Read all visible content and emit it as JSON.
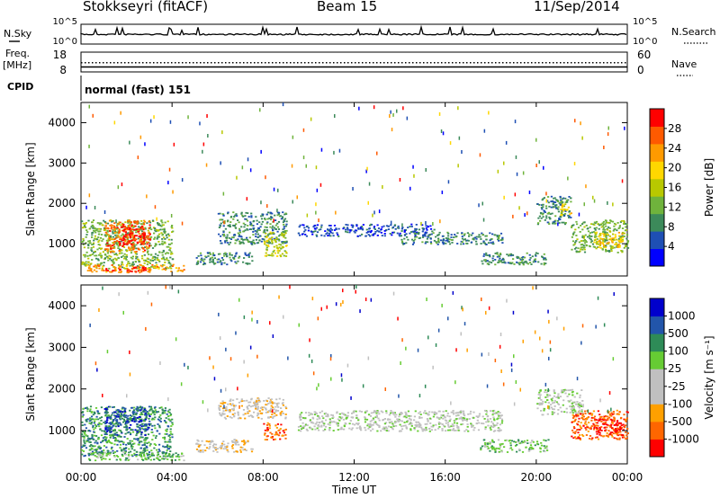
{
  "header": {
    "station": "Stokkseyri (fitACF)",
    "beam": "Beam 15",
    "date": "11/Sep/2014"
  },
  "left_labels": {
    "nsky": "N.Sky",
    "freq": "Freq.",
    "freq_unit": "[MHz]",
    "cpid": "CPID"
  },
  "right_labels": {
    "nsearch": "N.Search",
    "nave": "Nave"
  },
  "cpid_text": "normal (fast) 151",
  "colors": {
    "power": [
      "#0000ff",
      "#1e4fb4",
      "#3c8a5a",
      "#6fb33c",
      "#b8c800",
      "#ffd700",
      "#ff9a00",
      "#ff5a00",
      "#ff0000"
    ],
    "velocity": [
      "#ff0000",
      "#ff6600",
      "#ffa000",
      "#c0c0c0",
      "#c0c0c0",
      "#66cc33",
      "#2e8b57",
      "#2255aa",
      "#0000cc"
    ]
  },
  "chart_data": [
    {
      "type": "line",
      "name": "nsky-nsearch",
      "ylabel_left": "N.Sky",
      "ylabel_right": "N.Search",
      "left_ticks": [
        "10^5",
        "10^0"
      ],
      "right_ticks": [
        "10^5",
        "10^0"
      ],
      "yscale": "log"
    },
    {
      "type": "line",
      "name": "freq-nave",
      "left_ticks": [
        "18",
        "8"
      ],
      "right_ticks": [
        "60",
        "0"
      ],
      "ylim_left": [
        8,
        18
      ],
      "ylim_right": [
        0,
        60
      ],
      "series": [
        {
          "name": "Freq.",
          "style": "solid",
          "value": 10.5
        },
        {
          "name": "Nave",
          "style": "dotted",
          "value": 28
        }
      ]
    },
    {
      "type": "heatmap",
      "name": "power",
      "ylabel": "Slant Range [km]",
      "y_ticks": [
        "4000",
        "3000",
        "2000",
        "1000"
      ],
      "ylim": [
        200,
        4500
      ],
      "xlim": [
        0,
        24
      ],
      "colorbar": {
        "label": "Power [dB]",
        "ticks": [
          "28",
          "24",
          "20",
          "16",
          "12",
          "8",
          "4"
        ],
        "range": [
          0,
          32
        ]
      },
      "regions": [
        {
          "t": [
            0.0,
            4.0
          ],
          "r": [
            400,
            1600
          ],
          "level": 3
        },
        {
          "t": [
            1.0,
            3.0
          ],
          "r": [
            800,
            1600
          ],
          "level": 7
        },
        {
          "t": [
            1.8,
            2.8
          ],
          "r": [
            1000,
            1500
          ],
          "level": 8
        },
        {
          "t": [
            0.2,
            4.5
          ],
          "r": [
            300,
            500
          ],
          "level": 6
        },
        {
          "t": [
            1.0,
            3.0
          ],
          "r": [
            320,
            440
          ],
          "level": 8
        },
        {
          "t": [
            5.0,
            7.5
          ],
          "r": [
            500,
            800
          ],
          "level": 2
        },
        {
          "t": [
            6.0,
            9.0
          ],
          "r": [
            1000,
            1800
          ],
          "level": 2
        },
        {
          "t": [
            8.0,
            9.0
          ],
          "r": [
            700,
            1300
          ],
          "level": 4
        },
        {
          "t": [
            9.5,
            15.5
          ],
          "r": [
            1200,
            1500
          ],
          "level": 1
        },
        {
          "t": [
            14.0,
            18.5
          ],
          "r": [
            1000,
            1300
          ],
          "level": 2
        },
        {
          "t": [
            17.5,
            20.5
          ],
          "r": [
            500,
            800
          ],
          "level": 2
        },
        {
          "t": [
            20.0,
            21.5
          ],
          "r": [
            1500,
            2200
          ],
          "level": 2
        },
        {
          "t": [
            21.0,
            21.5
          ],
          "r": [
            1700,
            2000
          ],
          "level": 5
        },
        {
          "t": [
            21.5,
            24.0
          ],
          "r": [
            800,
            1600
          ],
          "level": 3
        },
        {
          "t": [
            22.5,
            23.8
          ],
          "r": [
            900,
            1300
          ],
          "level": 5
        }
      ]
    },
    {
      "type": "heatmap",
      "name": "velocity",
      "ylabel": "Slant Range [km]",
      "xlabel": "Time UT",
      "y_ticks": [
        "4000",
        "3000",
        "2000",
        "1000"
      ],
      "x_ticks": [
        "00:00",
        "04:00",
        "08:00",
        "12:00",
        "16:00",
        "20:00",
        "00:00"
      ],
      "ylim": [
        200,
        4500
      ],
      "xlim": [
        0,
        24
      ],
      "colorbar": {
        "label": "Velocity [m s⁻¹]",
        "ticks": [
          "1000",
          "500",
          "100",
          "25",
          "-25",
          "-100",
          "-500",
          "-1000"
        ]
      },
      "regions": [
        {
          "t": [
            0.0,
            4.0
          ],
          "r": [
            400,
            1600
          ],
          "level": 6
        },
        {
          "t": [
            1.0,
            3.0
          ],
          "r": [
            900,
            1600
          ],
          "level": 7
        },
        {
          "t": [
            0.2,
            4.5
          ],
          "r": [
            300,
            500
          ],
          "level": 5
        },
        {
          "t": [
            5.0,
            7.5
          ],
          "r": [
            500,
            800
          ],
          "level": 3
        },
        {
          "t": [
            6.0,
            9.0
          ],
          "r": [
            1300,
            1800
          ],
          "level": 3
        },
        {
          "t": [
            8.0,
            9.0
          ],
          "r": [
            800,
            1200
          ],
          "level": 1
        },
        {
          "t": [
            9.5,
            18.5
          ],
          "r": [
            1000,
            1500
          ],
          "level": 4
        },
        {
          "t": [
            17.5,
            20.5
          ],
          "r": [
            500,
            800
          ],
          "level": 5
        },
        {
          "t": [
            20.0,
            22.0
          ],
          "r": [
            1400,
            2000
          ],
          "level": 4
        },
        {
          "t": [
            21.5,
            24.0
          ],
          "r": [
            800,
            1500
          ],
          "level": 1
        },
        {
          "t": [
            22.5,
            23.8
          ],
          "r": [
            900,
            1300
          ],
          "level": 0
        }
      ]
    }
  ]
}
